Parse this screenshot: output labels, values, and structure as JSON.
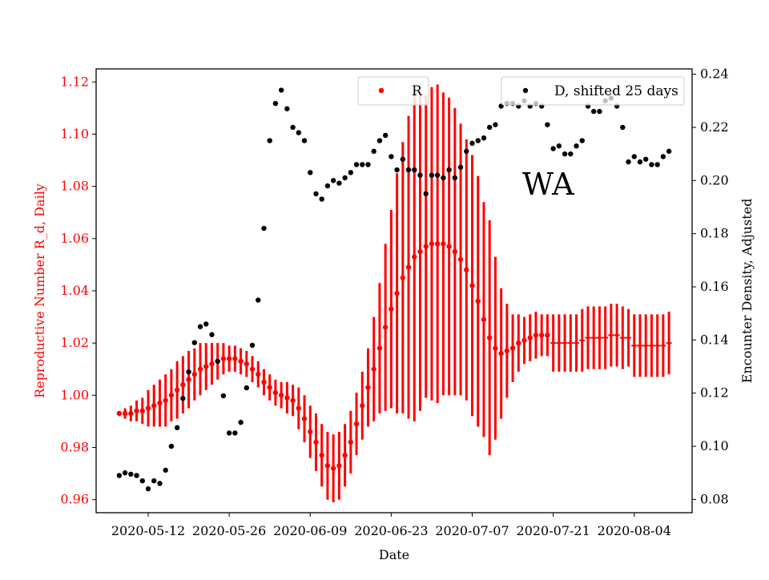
{
  "chart_data": {
    "type": "scatter",
    "annotation": "WA",
    "xlabel": "Date",
    "ylabel_left": "Reproductive Number R_d, Daily",
    "ylabel_right": "Encounter Density, Adjusted",
    "x_ticks": [
      "2020-05-12",
      "2020-05-26",
      "2020-06-09",
      "2020-06-23",
      "2020-07-07",
      "2020-07-21",
      "2020-08-04"
    ],
    "y_left_ticks": [
      "0.96",
      "0.98",
      "1.00",
      "1.02",
      "1.04",
      "1.06",
      "1.08",
      "1.10",
      "1.12"
    ],
    "y_right_ticks": [
      "0.08",
      "0.10",
      "0.12",
      "0.14",
      "0.16",
      "0.18",
      "0.20",
      "0.22",
      "0.24"
    ],
    "ylim_left": [
      0.955,
      1.125
    ],
    "ylim_right": [
      0.075,
      0.242
    ],
    "xlim": [
      "2020-05-03",
      "2020-08-14"
    ],
    "colors": {
      "R": "#ff0000",
      "D": "#000000",
      "left_axis": "#ff0000"
    },
    "legend_R": {
      "label": "R",
      "placement": "top-center"
    },
    "legend_D": {
      "label": "D, shifted 25 days",
      "placement": "top-right"
    },
    "series": [
      {
        "name": "R",
        "axis": "left",
        "x": [
          "2020-05-07",
          "2020-05-08",
          "2020-05-09",
          "2020-05-10",
          "2020-05-11",
          "2020-05-12",
          "2020-05-13",
          "2020-05-14",
          "2020-05-15",
          "2020-05-16",
          "2020-05-17",
          "2020-05-18",
          "2020-05-19",
          "2020-05-20",
          "2020-05-21",
          "2020-05-22",
          "2020-05-23",
          "2020-05-24",
          "2020-05-25",
          "2020-05-26",
          "2020-05-27",
          "2020-05-28",
          "2020-05-29",
          "2020-05-30",
          "2020-05-31",
          "2020-06-01",
          "2020-06-02",
          "2020-06-03",
          "2020-06-04",
          "2020-06-05",
          "2020-06-06",
          "2020-06-07",
          "2020-06-08",
          "2020-06-09",
          "2020-06-10",
          "2020-06-11",
          "2020-06-12",
          "2020-06-13",
          "2020-06-14",
          "2020-06-15",
          "2020-06-16",
          "2020-06-17",
          "2020-06-18",
          "2020-06-19",
          "2020-06-20",
          "2020-06-21",
          "2020-06-22",
          "2020-06-23",
          "2020-06-24",
          "2020-06-25",
          "2020-06-26",
          "2020-06-27",
          "2020-06-28",
          "2020-06-29",
          "2020-06-30",
          "2020-07-01",
          "2020-07-02",
          "2020-07-03",
          "2020-07-04",
          "2020-07-05",
          "2020-07-06",
          "2020-07-07",
          "2020-07-08",
          "2020-07-09",
          "2020-07-10",
          "2020-07-11",
          "2020-07-12",
          "2020-07-13",
          "2020-07-14",
          "2020-07-15",
          "2020-07-16",
          "2020-07-17",
          "2020-07-18",
          "2020-07-19",
          "2020-07-20"
        ],
        "y": [
          0.993,
          0.993,
          0.993,
          0.994,
          0.994,
          0.995,
          0.996,
          0.997,
          0.998,
          1.0,
          1.002,
          1.004,
          1.006,
          1.008,
          1.01,
          1.011,
          1.012,
          1.013,
          1.014,
          1.014,
          1.014,
          1.013,
          1.012,
          1.01,
          1.008,
          1.005,
          1.003,
          1.001,
          1.0,
          0.999,
          0.998,
          0.995,
          0.991,
          0.986,
          0.982,
          0.977,
          0.973,
          0.972,
          0.973,
          0.977,
          0.982,
          0.989,
          0.996,
          1.003,
          1.01,
          1.018,
          1.026,
          1.033,
          1.039,
          1.045,
          1.049,
          1.053,
          1.055,
          1.057,
          1.058,
          1.058,
          1.058,
          1.057,
          1.055,
          1.052,
          1.048,
          1.042,
          1.036,
          1.029,
          1.022,
          1.018,
          1.016,
          1.017,
          1.018,
          1.02,
          1.021,
          1.022,
          1.023,
          1.023,
          1.023
        ],
        "err": [
          0.001,
          0.002,
          0.003,
          0.004,
          0.005,
          0.007,
          0.008,
          0.009,
          0.01,
          0.01,
          0.011,
          0.011,
          0.011,
          0.01,
          0.01,
          0.009,
          0.008,
          0.007,
          0.006,
          0.005,
          0.005,
          0.005,
          0.005,
          0.005,
          0.005,
          0.005,
          0.005,
          0.005,
          0.005,
          0.006,
          0.006,
          0.008,
          0.009,
          0.01,
          0.011,
          0.012,
          0.013,
          0.013,
          0.013,
          0.012,
          0.012,
          0.012,
          0.013,
          0.015,
          0.02,
          0.025,
          0.032,
          0.038,
          0.046,
          0.052,
          0.058,
          0.063,
          0.061,
          0.058,
          0.06,
          0.061,
          0.058,
          0.057,
          0.055,
          0.052,
          0.05,
          0.05,
          0.048,
          0.045,
          0.045,
          0.035,
          0.025,
          0.018,
          0.013,
          0.011,
          0.009,
          0.009,
          0.009,
          0.008,
          0.008
        ]
      },
      {
        "name": "R_tail",
        "axis": "left",
        "x": [
          "2020-07-21",
          "2020-07-22",
          "2020-07-23",
          "2020-07-24",
          "2020-07-25",
          "2020-07-26",
          "2020-07-27",
          "2020-07-28",
          "2020-07-29",
          "2020-07-30",
          "2020-07-31",
          "2020-08-01",
          "2020-08-02",
          "2020-08-03",
          "2020-08-04",
          "2020-08-05",
          "2020-08-06",
          "2020-08-07",
          "2020-08-08",
          "2020-08-09",
          "2020-08-10"
        ],
        "y": [
          1.02,
          1.02,
          1.02,
          1.02,
          1.02,
          1.021,
          1.022,
          1.022,
          1.022,
          1.022,
          1.023,
          1.023,
          1.022,
          1.022,
          1.019,
          1.019,
          1.019,
          1.019,
          1.019,
          1.019,
          1.02
        ],
        "err": [
          0.011,
          0.011,
          0.011,
          0.011,
          0.011,
          0.012,
          0.012,
          0.012,
          0.012,
          0.012,
          0.012,
          0.012,
          0.012,
          0.011,
          0.012,
          0.012,
          0.012,
          0.012,
          0.012,
          0.012,
          0.012
        ]
      },
      {
        "name": "D, shifted 25 days",
        "axis": "right",
        "x": [
          "2020-05-07",
          "2020-05-08",
          "2020-05-09",
          "2020-05-10",
          "2020-05-11",
          "2020-05-12",
          "2020-05-13",
          "2020-05-14",
          "2020-05-15",
          "2020-05-16",
          "2020-05-17",
          "2020-05-18",
          "2020-05-19",
          "2020-05-20",
          "2020-05-21",
          "2020-05-22",
          "2020-05-23",
          "2020-05-24",
          "2020-05-25",
          "2020-05-26",
          "2020-05-27",
          "2020-05-28",
          "2020-05-29",
          "2020-05-30",
          "2020-05-31",
          "2020-06-01",
          "2020-06-02",
          "2020-06-03",
          "2020-06-04",
          "2020-06-05",
          "2020-06-06",
          "2020-06-07",
          "2020-06-08",
          "2020-06-09",
          "2020-06-10",
          "2020-06-11",
          "2020-06-12",
          "2020-06-13",
          "2020-06-14",
          "2020-06-15",
          "2020-06-16",
          "2020-06-17",
          "2020-06-18",
          "2020-06-19",
          "2020-06-20",
          "2020-06-21",
          "2020-06-22",
          "2020-06-23",
          "2020-06-24",
          "2020-06-25",
          "2020-06-26",
          "2020-06-27",
          "2020-06-28",
          "2020-06-29",
          "2020-06-30",
          "2020-07-01",
          "2020-07-02",
          "2020-07-03",
          "2020-07-04",
          "2020-07-05",
          "2020-07-06",
          "2020-07-07",
          "2020-07-08",
          "2020-07-09",
          "2020-07-10",
          "2020-07-11",
          "2020-07-12",
          "2020-07-13",
          "2020-07-14",
          "2020-07-15",
          "2020-07-16",
          "2020-07-17",
          "2020-07-18",
          "2020-07-19",
          "2020-07-20",
          "2020-07-21",
          "2020-07-22",
          "2020-07-23",
          "2020-07-24",
          "2020-07-25",
          "2020-07-26",
          "2020-07-27",
          "2020-07-28",
          "2020-07-29",
          "2020-07-30",
          "2020-07-31",
          "2020-08-01",
          "2020-08-02",
          "2020-08-03",
          "2020-08-04",
          "2020-08-05",
          "2020-08-06",
          "2020-08-07",
          "2020-08-08",
          "2020-08-09",
          "2020-08-10"
        ],
        "y": [
          0.089,
          0.09,
          0.0895,
          0.089,
          0.087,
          0.084,
          0.087,
          0.086,
          0.091,
          0.1,
          0.107,
          0.118,
          0.128,
          0.139,
          0.145,
          0.146,
          0.142,
          0.132,
          0.119,
          0.105,
          0.105,
          0.109,
          0.122,
          0.138,
          0.155,
          0.182,
          0.215,
          0.229,
          0.234,
          0.227,
          0.22,
          0.218,
          0.215,
          0.203,
          0.195,
          0.193,
          0.198,
          0.2,
          0.199,
          0.201,
          0.203,
          0.206,
          0.206,
          0.206,
          0.211,
          0.215,
          0.217,
          0.209,
          0.204,
          0.208,
          0.204,
          0.204,
          0.202,
          0.195,
          0.202,
          0.202,
          0.201,
          0.204,
          0.201,
          0.205,
          0.211,
          0.214,
          0.215,
          0.216,
          0.22,
          0.221,
          0.228,
          0.229,
          0.229,
          0.228,
          0.23,
          0.228,
          0.229,
          0.228,
          0.221,
          0.212,
          0.213,
          0.21,
          0.21,
          0.213,
          0.215,
          0.228,
          0.226,
          0.226,
          0.23,
          0.231,
          0.228,
          0.22,
          0.207,
          0.209,
          0.207,
          0.208,
          0.206,
          0.206,
          0.209,
          0.211
        ]
      }
    ]
  }
}
